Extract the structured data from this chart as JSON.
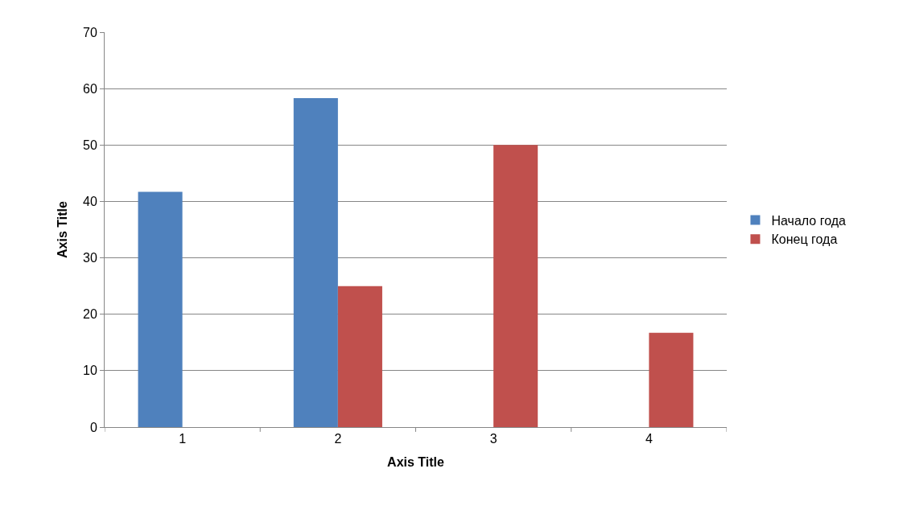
{
  "chart_data": {
    "type": "bar",
    "xlabel": "Axis Title",
    "ylabel": "Axis Title",
    "categories": [
      "1",
      "2",
      "3",
      "4"
    ],
    "series": [
      {
        "name": "Начало года",
        "color": "#4f81bd",
        "values": [
          41.7,
          58.3,
          null,
          null
        ]
      },
      {
        "name": "Конец года",
        "color": "#c0504d",
        "values": [
          null,
          25,
          50,
          16.7
        ]
      }
    ],
    "ylim": [
      0,
      70
    ],
    "yticks": [
      0,
      10,
      20,
      30,
      40,
      50,
      60,
      70
    ],
    "grid": "y",
    "legend": "right"
  }
}
